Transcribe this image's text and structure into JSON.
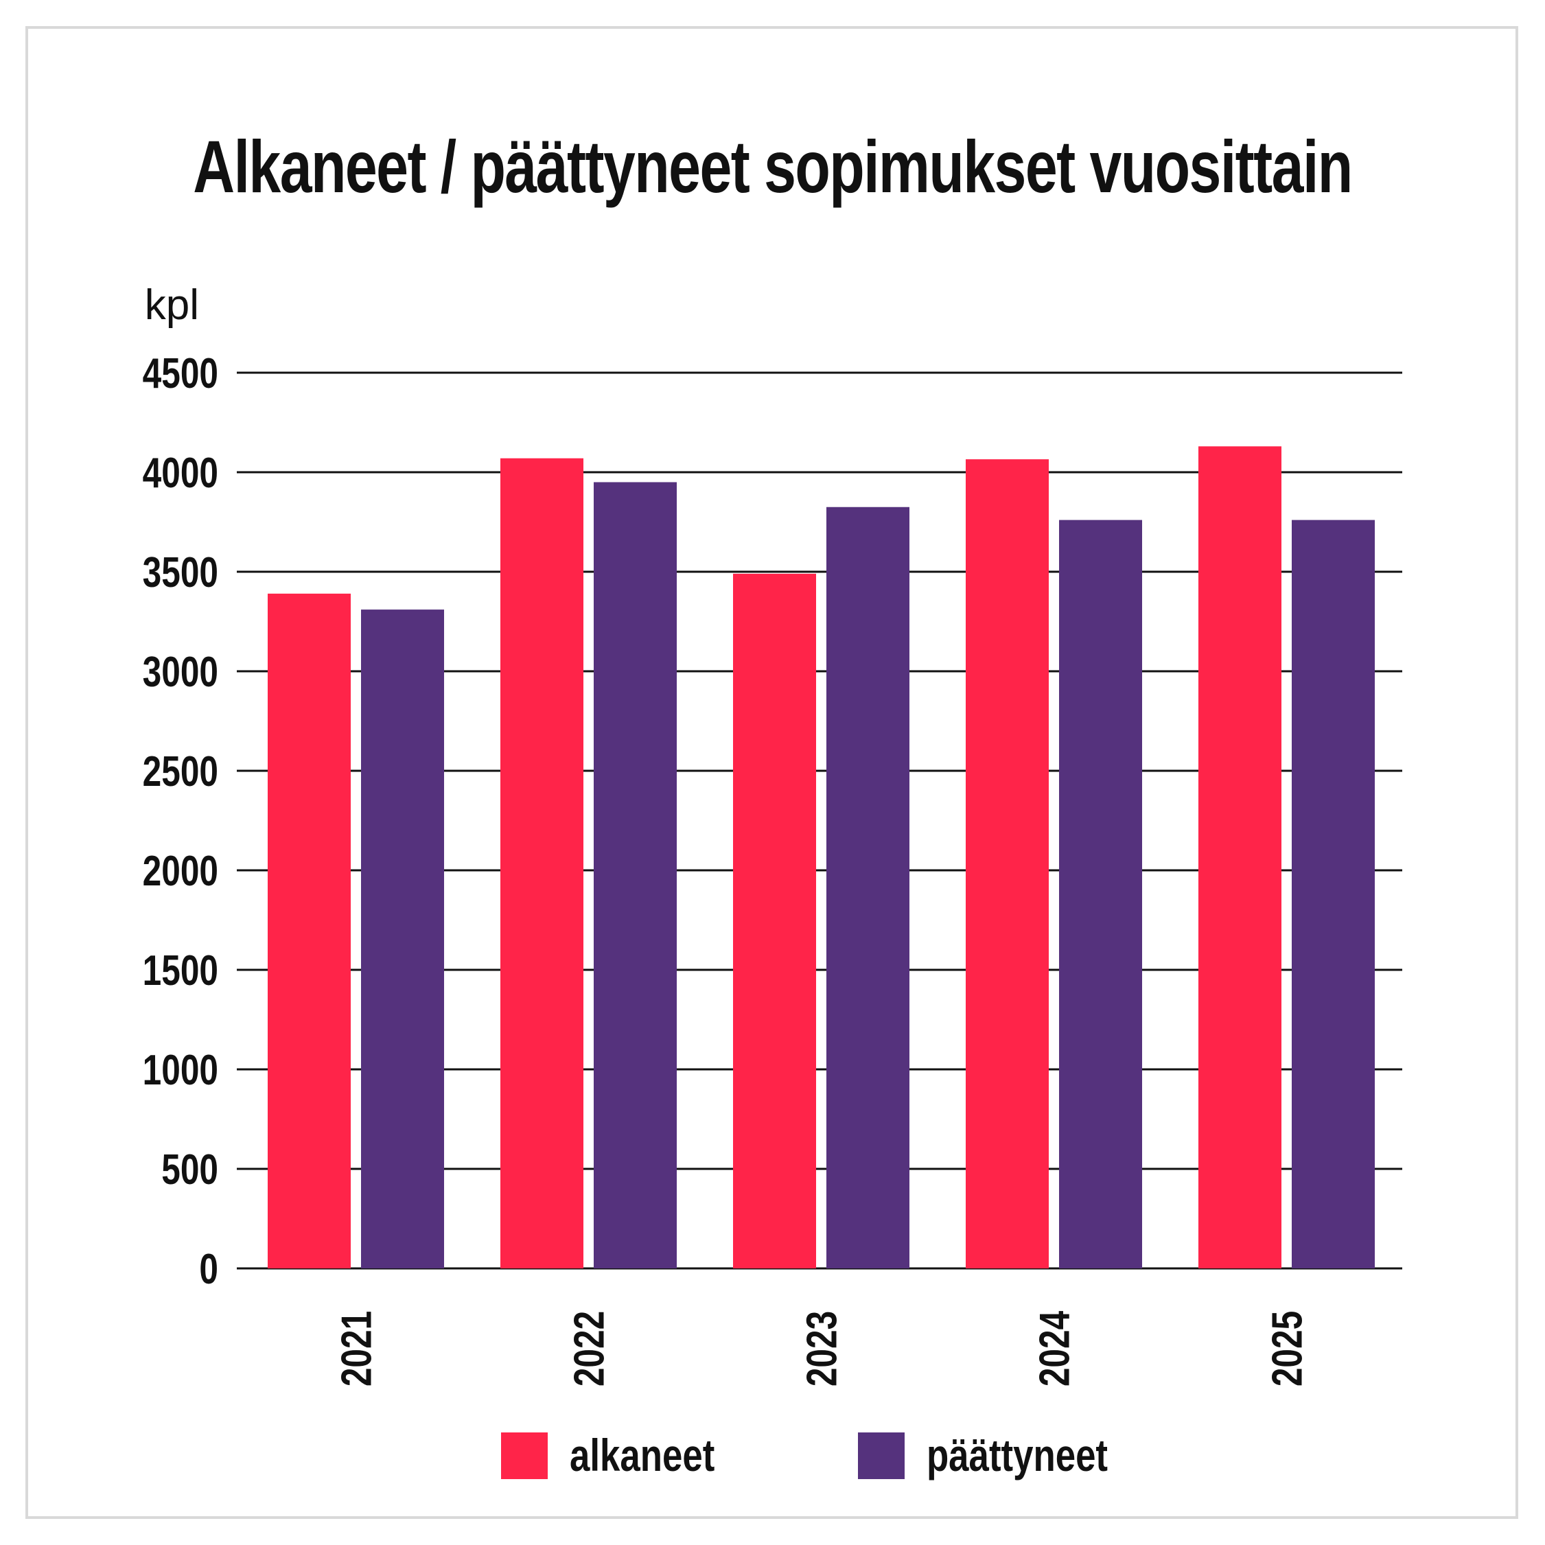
{
  "chart_data": {
    "type": "bar",
    "title": "Alkaneet / päättyneet sopimukset vuosittain",
    "ylabel": "kpl",
    "xlabel": "",
    "categories": [
      "2021",
      "2022",
      "2023",
      "2024",
      "2025"
    ],
    "series": [
      {
        "name": "alkaneet",
        "color": "#ff2449",
        "values": [
          3390,
          4070,
          3490,
          4065,
          4130
        ]
      },
      {
        "name": "päättyneet",
        "color": "#55327d",
        "values": [
          3310,
          3950,
          3825,
          3760,
          3760
        ]
      }
    ],
    "ylim": [
      0,
      4500
    ],
    "yticks": [
      "0",
      "500",
      "1000",
      "1500",
      "2000",
      "2500",
      "3000",
      "3500",
      "4000",
      "4500"
    ],
    "grid": true,
    "legend_position": "bottom-center"
  }
}
